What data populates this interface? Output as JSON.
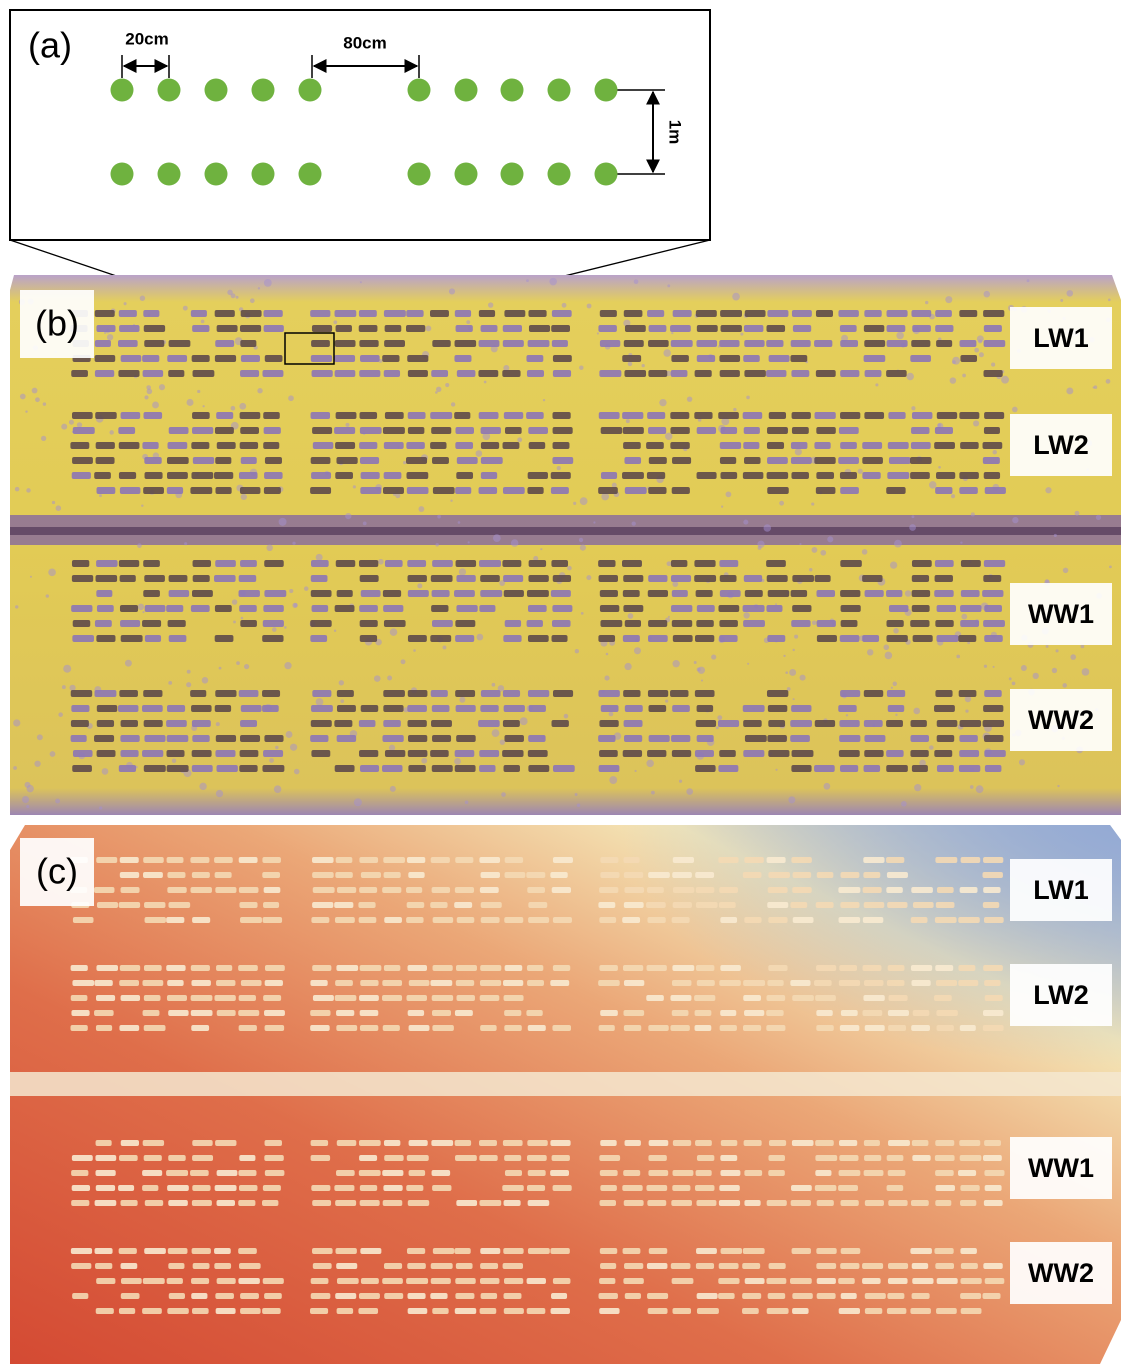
{
  "panel_a": {
    "label": "(a)",
    "spacing_within": "20cm",
    "spacing_between": "80cm",
    "row_spacing": "1m"
  },
  "panel_b": {
    "label": "(b)",
    "plots": [
      "LW1",
      "LW2",
      "WW1",
      "WW2"
    ]
  },
  "panel_c": {
    "label": "(c)",
    "plots": [
      "LW1",
      "LW2",
      "WW1",
      "WW2"
    ]
  }
}
